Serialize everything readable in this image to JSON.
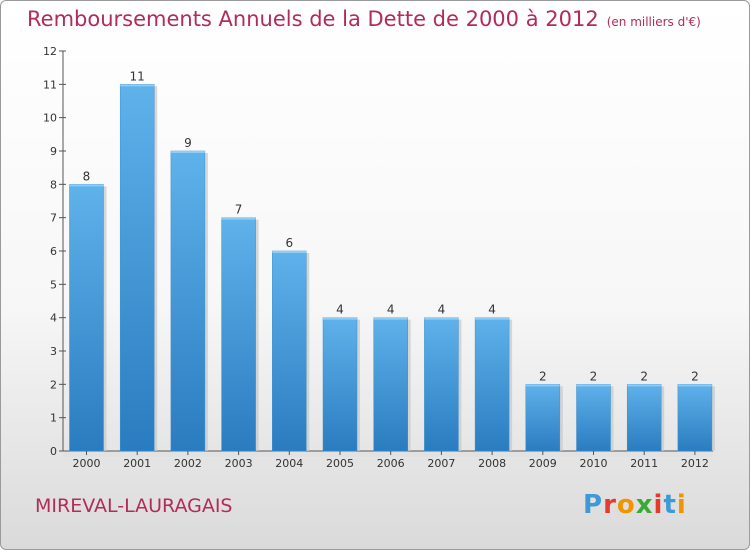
{
  "title": "Remboursements Annuels de la Dette de 2000 à 2012",
  "unit": "(en milliers d'€)",
  "commune": "MIREVAL-LAURAGAIS",
  "logo": {
    "letters": [
      "P",
      "r",
      "o",
      "x",
      "i",
      "t",
      "i"
    ],
    "colors": [
      "#3d9ad6",
      "#e53b2f",
      "#f29400",
      "#3aaa35",
      "#e53b2f",
      "#3d9ad6",
      "#f29400"
    ]
  },
  "colors": {
    "bar_top": "#5fb2ea",
    "bar_bottom": "#2a7cc0",
    "accent": "#b22b5a"
  },
  "chart_data": {
    "type": "bar",
    "categories": [
      "2000",
      "2001",
      "2002",
      "2003",
      "2004",
      "2005",
      "2006",
      "2007",
      "2008",
      "2009",
      "2010",
      "2011",
      "2012"
    ],
    "values": [
      8,
      11,
      9,
      7,
      6,
      4,
      4,
      4,
      4,
      2,
      2,
      2,
      2
    ],
    "yticks": [
      "0",
      "1",
      "2",
      "3",
      "4",
      "5",
      "6",
      "7",
      "8",
      "9",
      "10",
      "11",
      "12"
    ],
    "ylim": [
      0,
      12
    ],
    "grid": false
  }
}
